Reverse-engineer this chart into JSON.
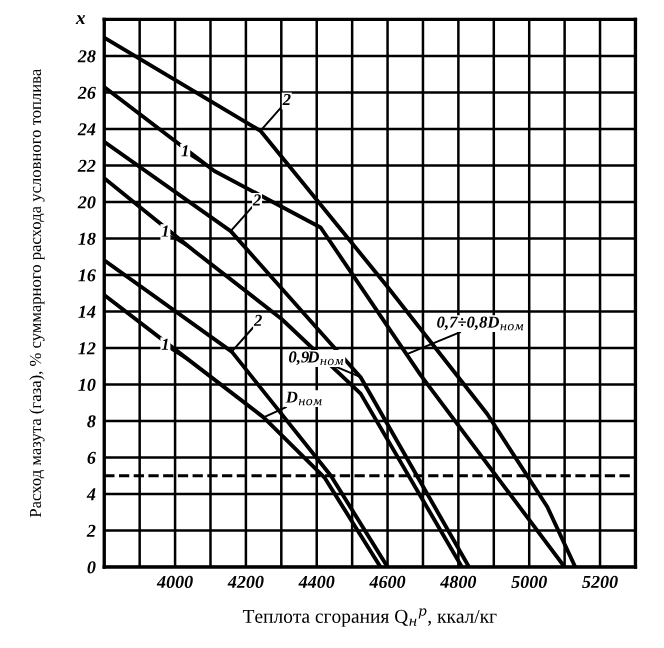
{
  "chart_data": {
    "type": "line",
    "xlabel": "Теплота сгорания Q$_{н}$$^{р}$, ккал/кг",
    "ylabel": "Расход мазута (газа), % суммарного расхода условного топлива",
    "series": [
      {
        "color": "#000000",
        "x": [
          3800,
          4241,
          4598,
          4881,
          5051,
          5130
        ],
        "values": [
          29.0,
          23.9,
          15.4,
          8.4,
          3.3,
          0
        ]
      },
      {
        "color": "#000000",
        "x": [
          3800,
          4111,
          4411,
          4694,
          5100
        ],
        "values": [
          26.3,
          21.7,
          18.6,
          10.5,
          0
        ]
      },
      {
        "color": "#000000",
        "x": [
          3800,
          4157,
          4524,
          4830
        ],
        "values": [
          23.3,
          18.4,
          10.4,
          0
        ]
      },
      {
        "color": "#000000",
        "x": [
          3800,
          4055,
          4300,
          4524,
          4810
        ],
        "values": [
          21.3,
          17.3,
          13.6,
          9.5,
          0
        ]
      },
      {
        "color": "#000000",
        "x": [
          3800,
          4160,
          4440,
          4600
        ],
        "values": [
          16.8,
          11.8,
          5.0,
          0
        ]
      },
      {
        "color": "#000000",
        "x": [
          3800,
          4055,
          4250,
          4422,
          4580
        ],
        "values": [
          14.9,
          11.1,
          8.2,
          4.9,
          0
        ]
      }
    ],
    "xlim": [
      3800,
      5300
    ],
    "xticks": [
      {
        "value": 3900,
        "label": null
      },
      4000,
      {
        "value": 4100,
        "label": null
      },
      4200,
      {
        "value": 4300,
        "label": null
      },
      4400,
      {
        "value": 4500,
        "label": null
      },
      4600,
      {
        "value": 4700,
        "label": null
      },
      4800,
      {
        "value": 4900,
        "label": null
      },
      5000,
      {
        "value": 5100,
        "label": null
      },
      5200
    ],
    "ylim": [
      0,
      30
    ],
    "yticks": [
      0,
      2,
      4,
      6,
      8,
      10,
      12,
      14,
      16,
      18,
      20,
      22,
      24,
      26,
      28
    ],
    "grid": true,
    "ref_lines": [
      {
        "axis": "y",
        "value": 5,
        "line_style": "dashed",
        "color": "#000000"
      }
    ],
    "annotations": [
      {
        "text": "2",
        "x": 4241,
        "y": 23.9
      },
      {
        "text": "1",
        "x": 4111,
        "y": 21.7
      },
      {
        "text": "2",
        "x": 4157,
        "y": 18.4
      },
      {
        "text": "1",
        "x": 4055,
        "y": 17.3
      },
      {
        "text": "2",
        "x": 4160,
        "y": 11.8
      },
      {
        "text": "1",
        "x": 4055,
        "y": 11.1
      },
      {
        "text": "D$_{ном}$",
        "x": 4250,
        "y": 8.2
      },
      {
        "text": "0,9D$_{ном}$",
        "x": 4524,
        "y": 10.4
      },
      {
        "text": "0,7÷0,8D$_{ном}$",
        "x": 4660,
        "y": 11.7
      },
      "x"
    ]
  }
}
